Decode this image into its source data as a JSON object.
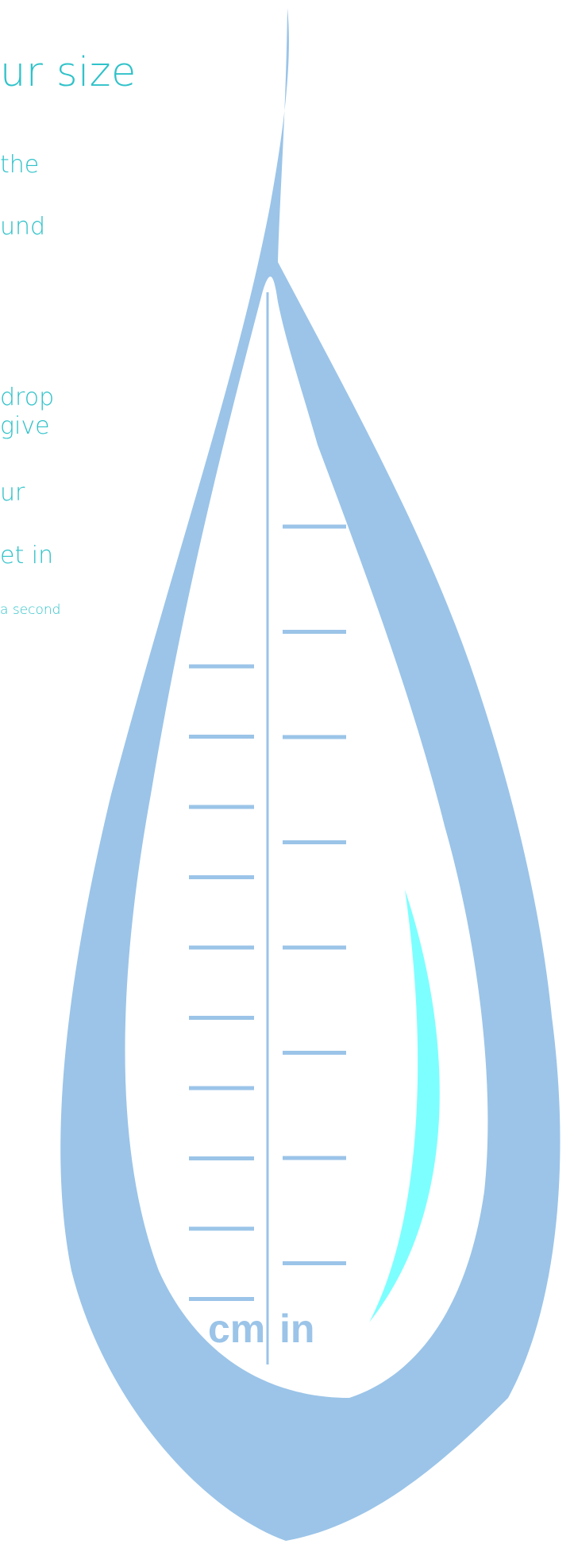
{
  "title": "ur size",
  "lines": [
    "the",
    "und",
    "drop",
    "give",
    "ur",
    "et in",
    "a second"
  ],
  "units": {
    "left": "cm",
    "right": "in"
  },
  "colors": {
    "text": "#2fc2c9",
    "drop": "#9bc4e8",
    "highlight": "#7dffff"
  }
}
